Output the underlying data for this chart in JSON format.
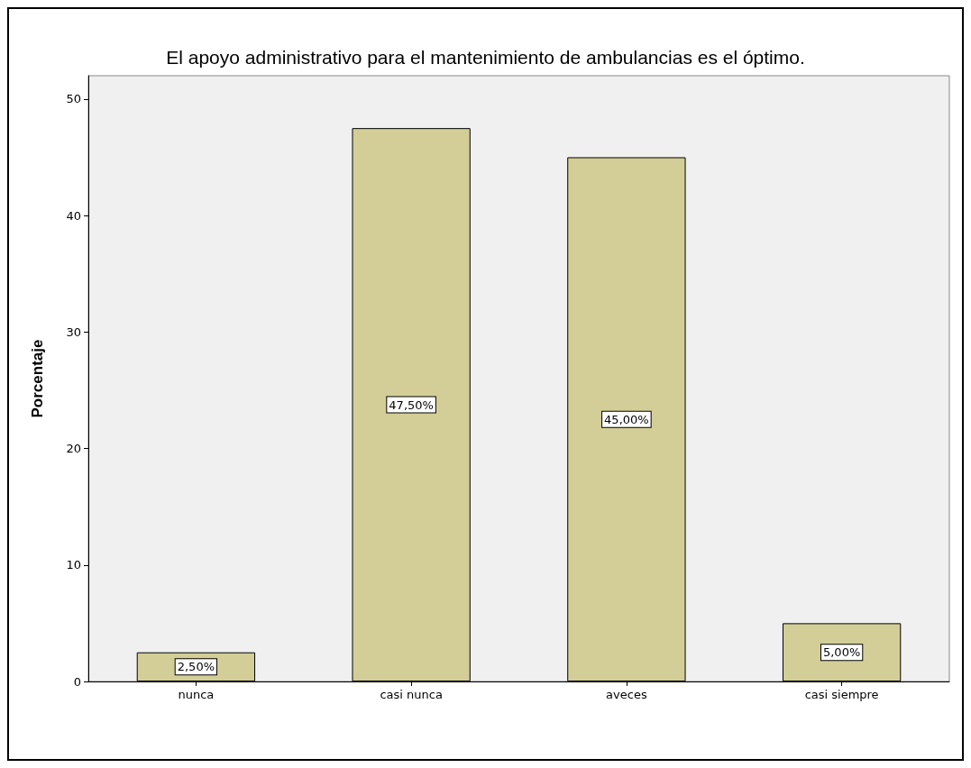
{
  "chart_data": {
    "type": "bar",
    "title": "El apoyo administrativo para el mantenimiento de ambulancias es el óptimo.",
    "ylabel": "Porcentaje",
    "categories": [
      "nunca",
      "casi nunca",
      "aveces",
      "casi siempre"
    ],
    "values": [
      2.5,
      47.5,
      45,
      5
    ],
    "value_labels": [
      "2,50%",
      "47,50%",
      "45,00%",
      "5,00%"
    ],
    "color": "#d3ce97",
    "ylim": [
      0,
      52
    ],
    "yticks": [
      0,
      10,
      20,
      30,
      40,
      50
    ],
    "grid": false
  }
}
